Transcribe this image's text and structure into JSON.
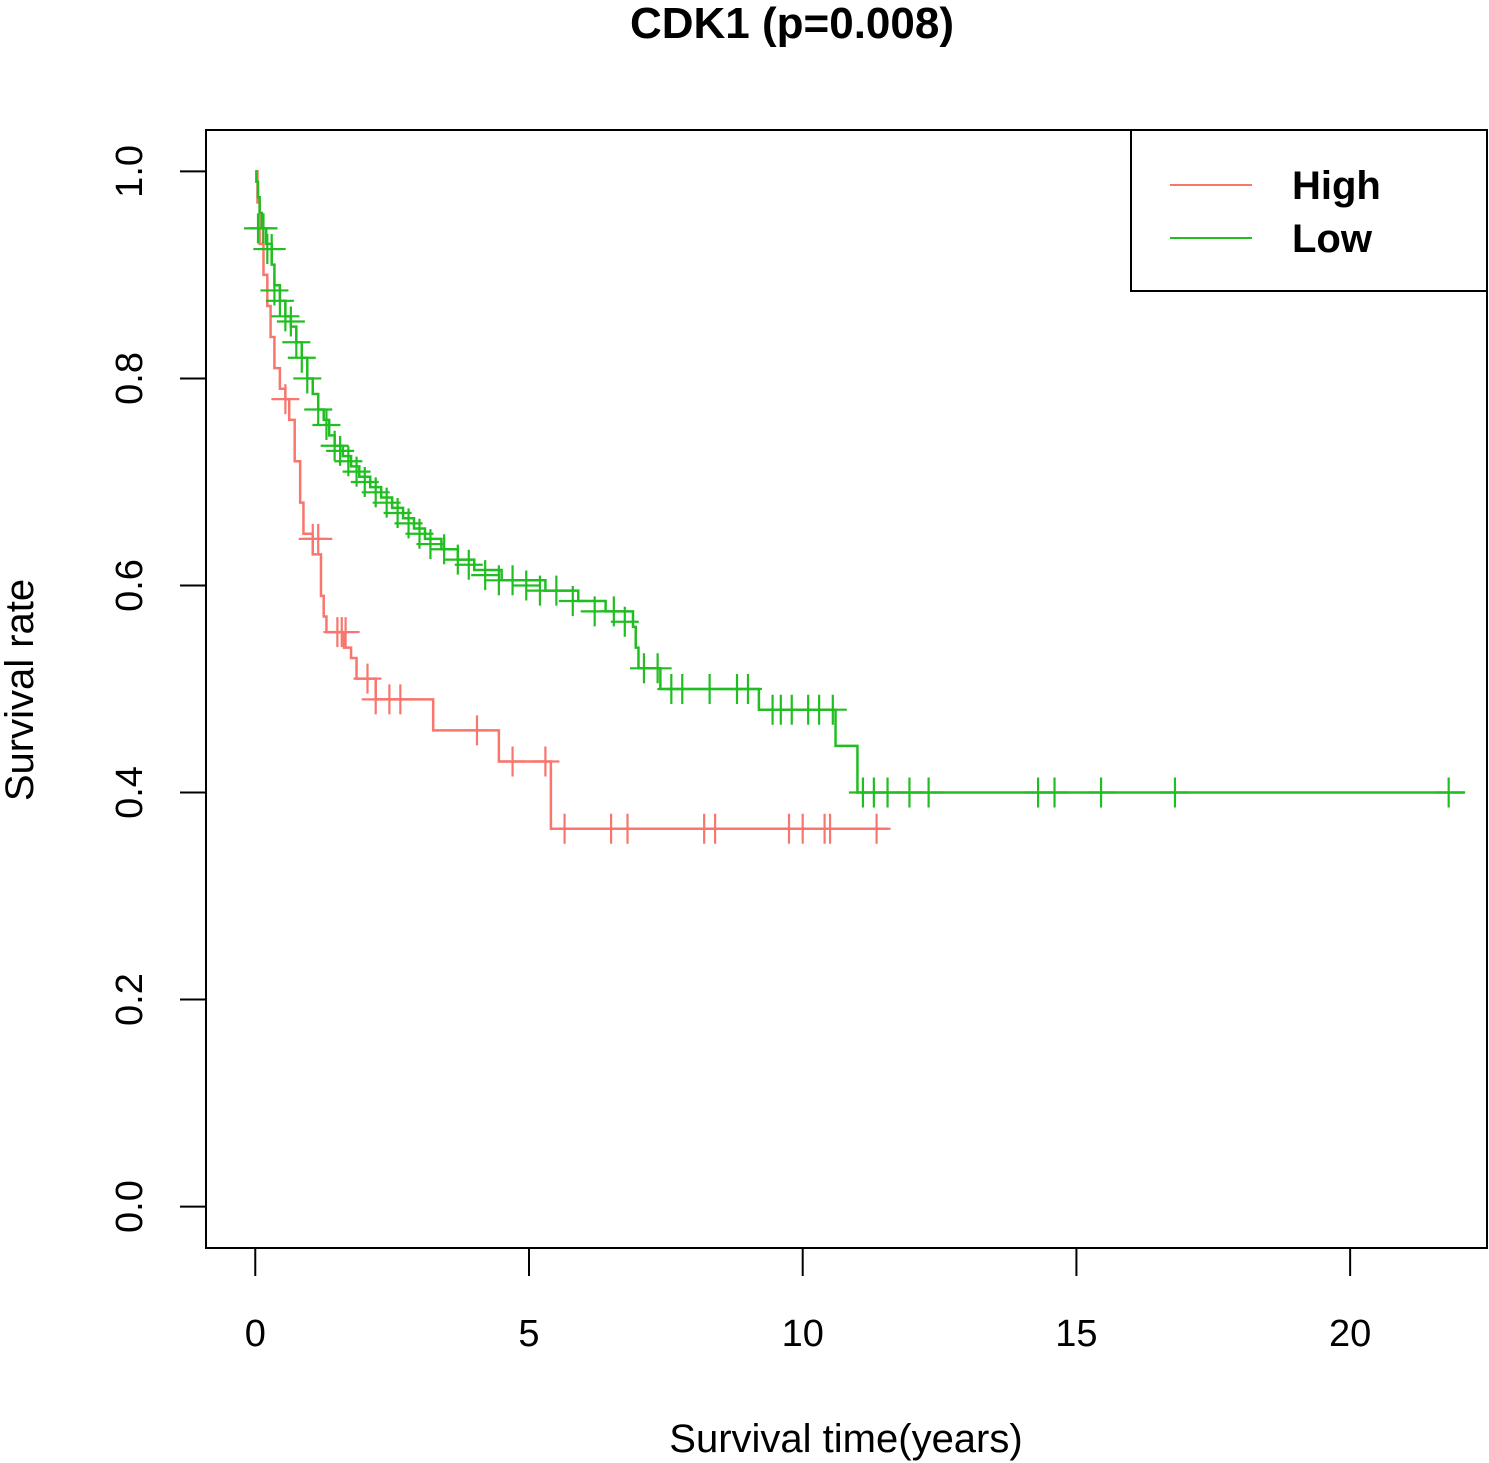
{
  "chart_data": {
    "type": "line",
    "subtype": "kaplan-meier",
    "title": "CDK1 (p=0.008)",
    "xlabel": "Survival time(years)",
    "ylabel": "Survival rate",
    "xlim": [
      -0.9,
      22.5
    ],
    "ylim": [
      -0.04,
      1.04
    ],
    "xticks": [
      0,
      5,
      10,
      15,
      20
    ],
    "xtick_labels": [
      "0",
      "5",
      "10",
      "15",
      "20"
    ],
    "yticks": [
      0.0,
      0.2,
      0.4,
      0.6,
      0.8,
      1.0
    ],
    "ytick_labels": [
      "0.0",
      "0.2",
      "0.4",
      "0.6",
      "0.8",
      "1.0"
    ],
    "grid": false,
    "legend": {
      "position": "top-right",
      "entries": [
        "High",
        "Low"
      ]
    },
    "series": [
      {
        "name": "High",
        "color": "#F8766D",
        "steps": [
          [
            0,
            1.0
          ],
          [
            0.04,
            0.97
          ],
          [
            0.08,
            0.93
          ],
          [
            0.15,
            0.9
          ],
          [
            0.22,
            0.87
          ],
          [
            0.28,
            0.84
          ],
          [
            0.35,
            0.81
          ],
          [
            0.45,
            0.79
          ],
          [
            0.55,
            0.78
          ],
          [
            0.62,
            0.76
          ],
          [
            0.72,
            0.72
          ],
          [
            0.82,
            0.68
          ],
          [
            0.88,
            0.65
          ],
          [
            1.05,
            0.63
          ],
          [
            1.2,
            0.59
          ],
          [
            1.25,
            0.57
          ],
          [
            1.3,
            0.555
          ],
          [
            1.62,
            0.54
          ],
          [
            1.75,
            0.53
          ],
          [
            1.85,
            0.51
          ],
          [
            2.2,
            0.49
          ],
          [
            3.25,
            0.46
          ],
          [
            4.45,
            0.43
          ],
          [
            5.4,
            0.365
          ]
        ],
        "end_x": 11.55,
        "censor": [
          [
            0.14,
            0.945
          ],
          [
            0.55,
            0.78
          ],
          [
            1.05,
            0.645
          ],
          [
            1.15,
            0.645
          ],
          [
            1.5,
            0.555
          ],
          [
            1.58,
            0.555
          ],
          [
            1.65,
            0.555
          ],
          [
            2.05,
            0.51
          ],
          [
            2.2,
            0.49
          ],
          [
            2.45,
            0.49
          ],
          [
            2.65,
            0.49
          ],
          [
            4.05,
            0.46
          ],
          [
            4.7,
            0.43
          ],
          [
            5.3,
            0.43
          ],
          [
            5.65,
            0.365
          ],
          [
            6.5,
            0.365
          ],
          [
            6.8,
            0.365
          ],
          [
            8.2,
            0.365
          ],
          [
            8.4,
            0.365
          ],
          [
            9.75,
            0.365
          ],
          [
            10.0,
            0.365
          ],
          [
            10.4,
            0.365
          ],
          [
            10.5,
            0.365
          ],
          [
            11.35,
            0.365
          ]
        ]
      },
      {
        "name": "Low",
        "color": "#21BE21",
        "steps": [
          [
            0,
            1.0
          ],
          [
            0.02,
            0.99
          ],
          [
            0.05,
            0.975
          ],
          [
            0.08,
            0.96
          ],
          [
            0.12,
            0.945
          ],
          [
            0.2,
            0.93
          ],
          [
            0.3,
            0.91
          ],
          [
            0.35,
            0.89
          ],
          [
            0.45,
            0.875
          ],
          [
            0.55,
            0.86
          ],
          [
            0.65,
            0.85
          ],
          [
            0.75,
            0.835
          ],
          [
            0.85,
            0.82
          ],
          [
            0.95,
            0.8
          ],
          [
            1.05,
            0.785
          ],
          [
            1.15,
            0.77
          ],
          [
            1.25,
            0.76
          ],
          [
            1.35,
            0.745
          ],
          [
            1.45,
            0.735
          ],
          [
            1.6,
            0.725
          ],
          [
            1.75,
            0.715
          ],
          [
            1.9,
            0.705
          ],
          [
            2.1,
            0.695
          ],
          [
            2.3,
            0.685
          ],
          [
            2.5,
            0.675
          ],
          [
            2.7,
            0.665
          ],
          [
            2.9,
            0.655
          ],
          [
            3.1,
            0.645
          ],
          [
            3.4,
            0.635
          ],
          [
            3.7,
            0.625
          ],
          [
            4.0,
            0.615
          ],
          [
            4.5,
            0.605
          ],
          [
            5.3,
            0.595
          ],
          [
            5.9,
            0.585
          ],
          [
            6.4,
            0.575
          ],
          [
            6.9,
            0.56
          ],
          [
            6.95,
            0.54
          ],
          [
            7.0,
            0.52
          ],
          [
            7.4,
            0.5
          ],
          [
            9.2,
            0.48
          ],
          [
            10.6,
            0.445
          ],
          [
            11.0,
            0.4
          ]
        ],
        "end_x": 22.1,
        "censor": [
          [
            0.05,
            0.945
          ],
          [
            0.15,
            0.945
          ],
          [
            0.22,
            0.925
          ],
          [
            0.3,
            0.925
          ],
          [
            0.35,
            0.885
          ],
          [
            0.45,
            0.875
          ],
          [
            0.55,
            0.86
          ],
          [
            0.65,
            0.855
          ],
          [
            0.75,
            0.835
          ],
          [
            0.85,
            0.82
          ],
          [
            0.95,
            0.8
          ],
          [
            1.15,
            0.77
          ],
          [
            1.3,
            0.755
          ],
          [
            1.45,
            0.735
          ],
          [
            1.55,
            0.73
          ],
          [
            1.7,
            0.72
          ],
          [
            1.85,
            0.71
          ],
          [
            2.0,
            0.7
          ],
          [
            2.2,
            0.69
          ],
          [
            2.4,
            0.68
          ],
          [
            2.6,
            0.67
          ],
          [
            2.8,
            0.66
          ],
          [
            3.0,
            0.65
          ],
          [
            3.2,
            0.64
          ],
          [
            3.45,
            0.635
          ],
          [
            3.7,
            0.625
          ],
          [
            3.9,
            0.62
          ],
          [
            4.2,
            0.61
          ],
          [
            4.45,
            0.605
          ],
          [
            4.7,
            0.605
          ],
          [
            4.95,
            0.6
          ],
          [
            5.2,
            0.595
          ],
          [
            5.5,
            0.595
          ],
          [
            5.8,
            0.585
          ],
          [
            6.2,
            0.575
          ],
          [
            6.55,
            0.575
          ],
          [
            6.75,
            0.565
          ],
          [
            7.1,
            0.52
          ],
          [
            7.35,
            0.52
          ],
          [
            7.6,
            0.5
          ],
          [
            7.8,
            0.5
          ],
          [
            8.3,
            0.5
          ],
          [
            8.8,
            0.5
          ],
          [
            9.0,
            0.5
          ],
          [
            9.45,
            0.48
          ],
          [
            9.6,
            0.48
          ],
          [
            9.8,
            0.48
          ],
          [
            10.1,
            0.48
          ],
          [
            10.3,
            0.48
          ],
          [
            10.55,
            0.48
          ],
          [
            11.1,
            0.4
          ],
          [
            11.3,
            0.4
          ],
          [
            11.55,
            0.4
          ],
          [
            11.95,
            0.4
          ],
          [
            12.3,
            0.4
          ],
          [
            14.3,
            0.4
          ],
          [
            14.6,
            0.4
          ],
          [
            15.45,
            0.4
          ],
          [
            16.8,
            0.4
          ],
          [
            21.8,
            0.4
          ]
        ]
      }
    ]
  }
}
